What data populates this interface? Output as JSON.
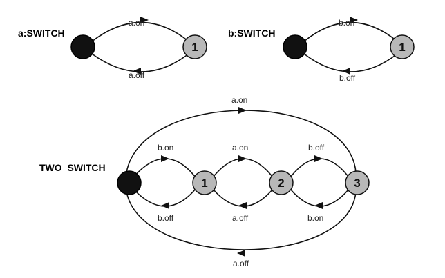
{
  "machines": [
    {
      "name": "a:SWITCH",
      "states": [
        "",
        "1"
      ],
      "edges": [
        {
          "from": "initial",
          "to": "1",
          "label": "a.on"
        },
        {
          "from": "1",
          "to": "initial",
          "label": "a.off"
        }
      ]
    },
    {
      "name": "b:SWITCH",
      "states": [
        "",
        "1"
      ],
      "edges": [
        {
          "from": "initial",
          "to": "1",
          "label": "b.on"
        },
        {
          "from": "1",
          "to": "initial",
          "label": "b.off"
        }
      ]
    },
    {
      "name": "TWO_SWITCH",
      "states": [
        "",
        "1",
        "2",
        "3"
      ],
      "edges": [
        {
          "from": "initial",
          "to": "1",
          "label": "b.on"
        },
        {
          "from": "1",
          "to": "initial",
          "label": "b.off"
        },
        {
          "from": "1",
          "to": "2",
          "label": "a.on"
        },
        {
          "from": "2",
          "to": "1",
          "label": "a.off"
        },
        {
          "from": "2",
          "to": "3",
          "label": "b.off"
        },
        {
          "from": "3",
          "to": "2",
          "label": "b.on"
        },
        {
          "from": "initial",
          "to": "3",
          "label": "a.on"
        },
        {
          "from": "3",
          "to": "initial",
          "label": "a.off"
        }
      ]
    }
  ]
}
